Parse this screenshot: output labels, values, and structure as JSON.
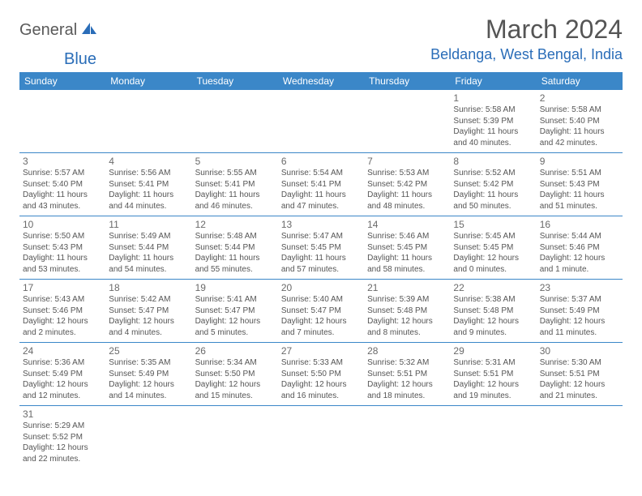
{
  "logo": {
    "part1": "General",
    "part2": "Blue"
  },
  "title": "March 2024",
  "location": "Beldanga, West Bengal, India",
  "colors": {
    "header_bg": "#3b87c8",
    "header_text": "#ffffff",
    "border": "#3b87c8",
    "accent": "#2a6db8",
    "body_text": "#555555",
    "background": "#ffffff"
  },
  "typography": {
    "title_fontsize": 32,
    "location_fontsize": 18,
    "dayheader_fontsize": 12,
    "daynum_fontsize": 12,
    "dayinfo_fontsize": 10
  },
  "day_headers": [
    "Sunday",
    "Monday",
    "Tuesday",
    "Wednesday",
    "Thursday",
    "Friday",
    "Saturday"
  ],
  "weeks": [
    [
      null,
      null,
      null,
      null,
      null,
      {
        "n": "1",
        "sr": "Sunrise: 5:58 AM",
        "ss": "Sunset: 5:39 PM",
        "dl1": "Daylight: 11 hours",
        "dl2": "and 40 minutes."
      },
      {
        "n": "2",
        "sr": "Sunrise: 5:58 AM",
        "ss": "Sunset: 5:40 PM",
        "dl1": "Daylight: 11 hours",
        "dl2": "and 42 minutes."
      }
    ],
    [
      {
        "n": "3",
        "sr": "Sunrise: 5:57 AM",
        "ss": "Sunset: 5:40 PM",
        "dl1": "Daylight: 11 hours",
        "dl2": "and 43 minutes."
      },
      {
        "n": "4",
        "sr": "Sunrise: 5:56 AM",
        "ss": "Sunset: 5:41 PM",
        "dl1": "Daylight: 11 hours",
        "dl2": "and 44 minutes."
      },
      {
        "n": "5",
        "sr": "Sunrise: 5:55 AM",
        "ss": "Sunset: 5:41 PM",
        "dl1": "Daylight: 11 hours",
        "dl2": "and 46 minutes."
      },
      {
        "n": "6",
        "sr": "Sunrise: 5:54 AM",
        "ss": "Sunset: 5:41 PM",
        "dl1": "Daylight: 11 hours",
        "dl2": "and 47 minutes."
      },
      {
        "n": "7",
        "sr": "Sunrise: 5:53 AM",
        "ss": "Sunset: 5:42 PM",
        "dl1": "Daylight: 11 hours",
        "dl2": "and 48 minutes."
      },
      {
        "n": "8",
        "sr": "Sunrise: 5:52 AM",
        "ss": "Sunset: 5:42 PM",
        "dl1": "Daylight: 11 hours",
        "dl2": "and 50 minutes."
      },
      {
        "n": "9",
        "sr": "Sunrise: 5:51 AM",
        "ss": "Sunset: 5:43 PM",
        "dl1": "Daylight: 11 hours",
        "dl2": "and 51 minutes."
      }
    ],
    [
      {
        "n": "10",
        "sr": "Sunrise: 5:50 AM",
        "ss": "Sunset: 5:43 PM",
        "dl1": "Daylight: 11 hours",
        "dl2": "and 53 minutes."
      },
      {
        "n": "11",
        "sr": "Sunrise: 5:49 AM",
        "ss": "Sunset: 5:44 PM",
        "dl1": "Daylight: 11 hours",
        "dl2": "and 54 minutes."
      },
      {
        "n": "12",
        "sr": "Sunrise: 5:48 AM",
        "ss": "Sunset: 5:44 PM",
        "dl1": "Daylight: 11 hours",
        "dl2": "and 55 minutes."
      },
      {
        "n": "13",
        "sr": "Sunrise: 5:47 AM",
        "ss": "Sunset: 5:45 PM",
        "dl1": "Daylight: 11 hours",
        "dl2": "and 57 minutes."
      },
      {
        "n": "14",
        "sr": "Sunrise: 5:46 AM",
        "ss": "Sunset: 5:45 PM",
        "dl1": "Daylight: 11 hours",
        "dl2": "and 58 minutes."
      },
      {
        "n": "15",
        "sr": "Sunrise: 5:45 AM",
        "ss": "Sunset: 5:45 PM",
        "dl1": "Daylight: 12 hours",
        "dl2": "and 0 minutes."
      },
      {
        "n": "16",
        "sr": "Sunrise: 5:44 AM",
        "ss": "Sunset: 5:46 PM",
        "dl1": "Daylight: 12 hours",
        "dl2": "and 1 minute."
      }
    ],
    [
      {
        "n": "17",
        "sr": "Sunrise: 5:43 AM",
        "ss": "Sunset: 5:46 PM",
        "dl1": "Daylight: 12 hours",
        "dl2": "and 2 minutes."
      },
      {
        "n": "18",
        "sr": "Sunrise: 5:42 AM",
        "ss": "Sunset: 5:47 PM",
        "dl1": "Daylight: 12 hours",
        "dl2": "and 4 minutes."
      },
      {
        "n": "19",
        "sr": "Sunrise: 5:41 AM",
        "ss": "Sunset: 5:47 PM",
        "dl1": "Daylight: 12 hours",
        "dl2": "and 5 minutes."
      },
      {
        "n": "20",
        "sr": "Sunrise: 5:40 AM",
        "ss": "Sunset: 5:47 PM",
        "dl1": "Daylight: 12 hours",
        "dl2": "and 7 minutes."
      },
      {
        "n": "21",
        "sr": "Sunrise: 5:39 AM",
        "ss": "Sunset: 5:48 PM",
        "dl1": "Daylight: 12 hours",
        "dl2": "and 8 minutes."
      },
      {
        "n": "22",
        "sr": "Sunrise: 5:38 AM",
        "ss": "Sunset: 5:48 PM",
        "dl1": "Daylight: 12 hours",
        "dl2": "and 9 minutes."
      },
      {
        "n": "23",
        "sr": "Sunrise: 5:37 AM",
        "ss": "Sunset: 5:49 PM",
        "dl1": "Daylight: 12 hours",
        "dl2": "and 11 minutes."
      }
    ],
    [
      {
        "n": "24",
        "sr": "Sunrise: 5:36 AM",
        "ss": "Sunset: 5:49 PM",
        "dl1": "Daylight: 12 hours",
        "dl2": "and 12 minutes."
      },
      {
        "n": "25",
        "sr": "Sunrise: 5:35 AM",
        "ss": "Sunset: 5:49 PM",
        "dl1": "Daylight: 12 hours",
        "dl2": "and 14 minutes."
      },
      {
        "n": "26",
        "sr": "Sunrise: 5:34 AM",
        "ss": "Sunset: 5:50 PM",
        "dl1": "Daylight: 12 hours",
        "dl2": "and 15 minutes."
      },
      {
        "n": "27",
        "sr": "Sunrise: 5:33 AM",
        "ss": "Sunset: 5:50 PM",
        "dl1": "Daylight: 12 hours",
        "dl2": "and 16 minutes."
      },
      {
        "n": "28",
        "sr": "Sunrise: 5:32 AM",
        "ss": "Sunset: 5:51 PM",
        "dl1": "Daylight: 12 hours",
        "dl2": "and 18 minutes."
      },
      {
        "n": "29",
        "sr": "Sunrise: 5:31 AM",
        "ss": "Sunset: 5:51 PM",
        "dl1": "Daylight: 12 hours",
        "dl2": "and 19 minutes."
      },
      {
        "n": "30",
        "sr": "Sunrise: 5:30 AM",
        "ss": "Sunset: 5:51 PM",
        "dl1": "Daylight: 12 hours",
        "dl2": "and 21 minutes."
      }
    ],
    [
      {
        "n": "31",
        "sr": "Sunrise: 5:29 AM",
        "ss": "Sunset: 5:52 PM",
        "dl1": "Daylight: 12 hours",
        "dl2": "and 22 minutes."
      },
      null,
      null,
      null,
      null,
      null,
      null
    ]
  ]
}
